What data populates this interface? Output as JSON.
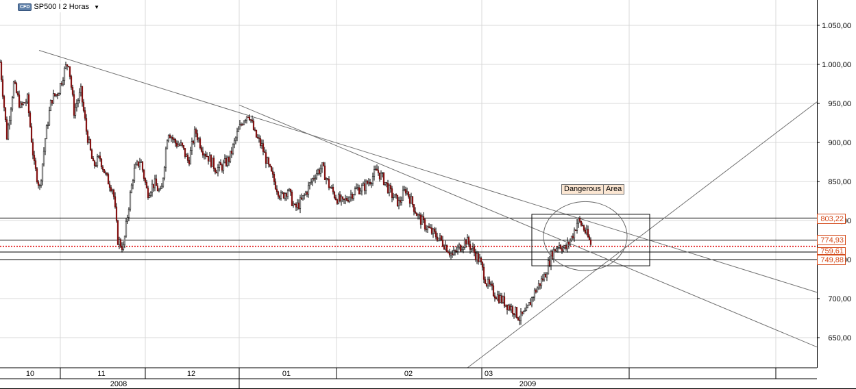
{
  "header": {
    "badge": "CFD",
    "symbol": "SP500 I 2 Horas"
  },
  "annotations": {
    "label1": "Dangerous",
    "label2": "Area"
  },
  "colors": {
    "up_candle": "#1a1a1a",
    "down_candle": "#b01818",
    "level_label": "#d44a1a",
    "current_price_line": "#e00000",
    "grid": "#d8d8d8",
    "trendline": "#707070"
  },
  "chart_data": {
    "type": "candlestick",
    "y_axis": {
      "range": [
        605,
        1085
      ],
      "ticks": [
        {
          "value": 650,
          "label": "650,00"
        },
        {
          "value": 700,
          "label": "700,00"
        },
        {
          "value": 750,
          "label": "750,00"
        },
        {
          "value": 800,
          "label": "800,00"
        },
        {
          "value": 850,
          "label": "850,00"
        },
        {
          "value": 900,
          "label": "900,00"
        },
        {
          "value": 950,
          "label": "950,00"
        },
        {
          "value": 1000,
          "label": "1.000,00"
        },
        {
          "value": 1050,
          "label": "1.050,00"
        }
      ]
    },
    "x_axis": {
      "months": [
        "10",
        "11",
        "12",
        "01",
        "02",
        "03"
      ],
      "years": [
        "2008",
        "2009"
      ]
    },
    "levels": [
      {
        "value": 803.22,
        "label": "803,22"
      },
      {
        "value": 774.93,
        "label": "774,93"
      },
      {
        "value": 759.61,
        "label": "759,61"
      },
      {
        "value": 749.88,
        "label": "749,88"
      }
    ],
    "current_price": 767,
    "series_path": [
      [
        0,
        1003
      ],
      [
        10,
        908
      ],
      [
        20,
        975
      ],
      [
        30,
        945
      ],
      [
        40,
        955
      ],
      [
        50,
        870
      ],
      [
        58,
        842
      ],
      [
        66,
        905
      ],
      [
        75,
        955
      ],
      [
        85,
        965
      ],
      [
        95,
        995
      ],
      [
        100,
        1003
      ],
      [
        108,
        940
      ],
      [
        118,
        965
      ],
      [
        126,
        915
      ],
      [
        136,
        870
      ],
      [
        146,
        880
      ],
      [
        155,
        855
      ],
      [
        165,
        840
      ],
      [
        172,
        775
      ],
      [
        180,
        765
      ],
      [
        188,
        820
      ],
      [
        195,
        862
      ],
      [
        205,
        878
      ],
      [
        215,
        835
      ],
      [
        225,
        848
      ],
      [
        235,
        833
      ],
      [
        245,
        916
      ],
      [
        255,
        900
      ],
      [
        265,
        895
      ],
      [
        275,
        875
      ],
      [
        285,
        915
      ],
      [
        295,
        892
      ],
      [
        305,
        880
      ],
      [
        315,
        866
      ],
      [
        325,
        870
      ],
      [
        335,
        880
      ],
      [
        345,
        908
      ],
      [
        355,
        930
      ],
      [
        363,
        938
      ],
      [
        372,
        910
      ],
      [
        382,
        895
      ],
      [
        392,
        868
      ],
      [
        400,
        850
      ],
      [
        410,
        830
      ],
      [
        420,
        840
      ],
      [
        430,
        815
      ],
      [
        440,
        825
      ],
      [
        450,
        842
      ],
      [
        460,
        860
      ],
      [
        470,
        868
      ],
      [
        480,
        845
      ],
      [
        490,
        830
      ],
      [
        500,
        822
      ],
      [
        510,
        832
      ],
      [
        520,
        840
      ],
      [
        530,
        842
      ],
      [
        540,
        852
      ],
      [
        550,
        864
      ],
      [
        560,
        852
      ],
      [
        570,
        835
      ],
      [
        582,
        822
      ],
      [
        592,
        840
      ],
      [
        600,
        825
      ],
      [
        610,
        805
      ],
      [
        620,
        794
      ],
      [
        630,
        785
      ],
      [
        640,
        778
      ],
      [
        650,
        768
      ],
      [
        660,
        755
      ],
      [
        670,
        765
      ],
      [
        680,
        775
      ],
      [
        690,
        762
      ],
      [
        700,
        748
      ],
      [
        710,
        720
      ],
      [
        720,
        708
      ],
      [
        730,
        700
      ],
      [
        740,
        692
      ],
      [
        750,
        685
      ],
      [
        758,
        675
      ],
      [
        768,
        682
      ],
      [
        778,
        705
      ],
      [
        788,
        720
      ],
      [
        795,
        730
      ],
      [
        805,
        757
      ],
      [
        815,
        770
      ],
      [
        825,
        763
      ],
      [
        835,
        780
      ],
      [
        843,
        800
      ],
      [
        850,
        793
      ],
      [
        856,
        782
      ],
      [
        863,
        768
      ]
    ],
    "trendlines": [
      {
        "x1": 57,
        "y1": 1018,
        "x2": 1192,
        "y2": 708
      },
      {
        "x1": 349,
        "y1": 948,
        "x2": 1192,
        "y2": 638
      },
      {
        "x1": 674,
        "y1": 606,
        "x2": 1192,
        "y2": 952
      }
    ],
    "zone_box": {
      "x1": 776,
      "x2": 948,
      "y_top": 808,
      "y_bottom": 742
    },
    "ellipse": {
      "cx": 854,
      "cy": 780,
      "rx": 61,
      "ry_value": 26
    }
  }
}
